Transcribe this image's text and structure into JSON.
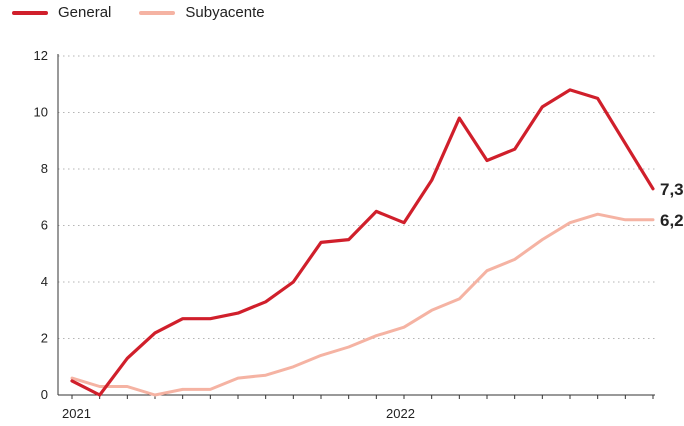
{
  "legend": {
    "general": "General",
    "subyacente": "Subyacente"
  },
  "colors": {
    "general": "#d01f2b",
    "subyacente": "#f5b3a3",
    "grid": "#b5b5b5",
    "axis": "#333333"
  },
  "chart_data": {
    "type": "line",
    "x_labels": [
      "2021",
      "2022"
    ],
    "ylim": [
      0,
      12
    ],
    "yticks": [
      0,
      2,
      4,
      6,
      8,
      10,
      12
    ],
    "grid": "horizontal-dotted",
    "legend_position": "top-left",
    "series": [
      {
        "name": "General",
        "values": [
          0.5,
          0.0,
          1.3,
          2.2,
          2.7,
          2.7,
          2.9,
          3.3,
          4.0,
          5.4,
          5.5,
          6.5,
          6.1,
          7.6,
          9.8,
          8.3,
          8.7,
          10.2,
          10.8,
          10.5,
          8.9,
          7.3
        ],
        "end_label": "7,3"
      },
      {
        "name": "Subyacente",
        "values": [
          0.6,
          0.3,
          0.3,
          0.0,
          0.2,
          0.2,
          0.6,
          0.7,
          1.0,
          1.4,
          1.7,
          2.1,
          2.4,
          3.0,
          3.4,
          4.4,
          4.8,
          5.5,
          6.1,
          6.4,
          6.2,
          6.2
        ],
        "end_label": "6,2"
      }
    ]
  }
}
